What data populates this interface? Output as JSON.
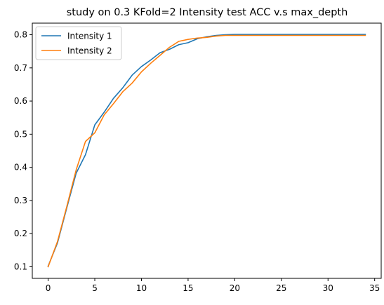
{
  "chart_data": {
    "type": "line",
    "title": "study on 0.3 KFold=2 Intensity test ACC v.s max_depth",
    "xlabel": "",
    "ylabel": "",
    "xlim": [
      -1.7,
      35.7
    ],
    "ylim": [
      0.065,
      0.835
    ],
    "xticks": [
      0,
      5,
      10,
      15,
      20,
      25,
      30,
      35
    ],
    "yticks": [
      0.1,
      0.2,
      0.3,
      0.4,
      0.5,
      0.6,
      0.7,
      0.8
    ],
    "grid": false,
    "legend_position": "upper left",
    "x": [
      0,
      1,
      2,
      3,
      4,
      5,
      6,
      7,
      8,
      9,
      10,
      11,
      12,
      13,
      14,
      15,
      16,
      17,
      18,
      19,
      20,
      21,
      22,
      23,
      24,
      25,
      26,
      27,
      28,
      29,
      30,
      31,
      32,
      33,
      34
    ],
    "series": [
      {
        "name": "Intensity 1",
        "color": "#1f77b4",
        "values": [
          0.102,
          0.172,
          0.278,
          0.382,
          0.438,
          0.528,
          0.566,
          0.608,
          0.64,
          0.678,
          0.704,
          0.724,
          0.746,
          0.756,
          0.77,
          0.776,
          0.788,
          0.794,
          0.798,
          0.8,
          0.801,
          0.801,
          0.801,
          0.801,
          0.801,
          0.801,
          0.801,
          0.801,
          0.801,
          0.801,
          0.801,
          0.801,
          0.801,
          0.801,
          0.801
        ]
      },
      {
        "name": "Intensity 2",
        "color": "#ff7f0e",
        "values": [
          0.1,
          0.176,
          0.282,
          0.392,
          0.478,
          0.504,
          0.558,
          0.592,
          0.628,
          0.654,
          0.688,
          0.714,
          0.738,
          0.762,
          0.78,
          0.786,
          0.79,
          0.792,
          0.796,
          0.798,
          0.798,
          0.798,
          0.798,
          0.798,
          0.798,
          0.798,
          0.798,
          0.798,
          0.798,
          0.798,
          0.798,
          0.798,
          0.798,
          0.798,
          0.798
        ]
      }
    ]
  }
}
